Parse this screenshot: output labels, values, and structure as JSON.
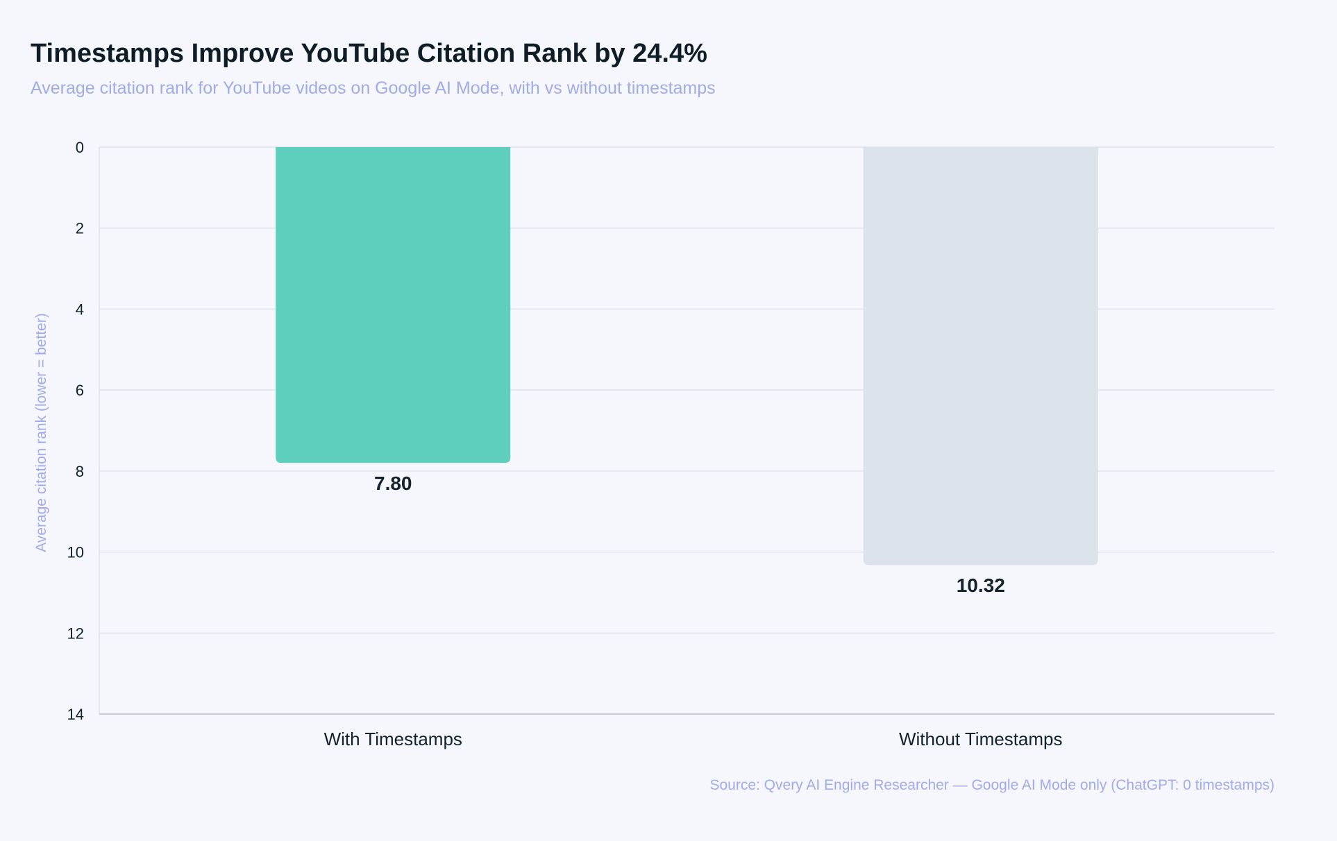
{
  "header": {
    "title": "Timestamps Improve YouTube Citation Rank by 24.4%",
    "subtitle": "Average citation rank for YouTube videos on Google AI Mode, with vs without timestamps"
  },
  "footer": {
    "source": "Source: Qvery AI Engine Researcher — Google AI Mode only (ChatGPT: 0 timestamps)"
  },
  "colors": {
    "with_timestamps": "#5ecfbc",
    "without_timestamps": "#dbe2ea",
    "grid": "#dde3ec",
    "axis": "#b9c1cc",
    "tick_text": "#14222b",
    "axis_label": "#a3aae8"
  },
  "chart_data": {
    "type": "bar",
    "title": "Timestamps Improve YouTube Citation Rank by 24.4%",
    "subtitle": "Average citation rank for YouTube videos on Google AI Mode, with vs without timestamps",
    "categories": [
      "With Timestamps",
      "Without Timestamps"
    ],
    "values": [
      7.8,
      10.32
    ],
    "value_labels": [
      "7.80",
      "10.32"
    ],
    "xlabel": "",
    "ylabel": "Average citation rank (lower = better)",
    "ylim": [
      0,
      14
    ],
    "y_inverted": true,
    "y_ticks": [
      0,
      2,
      4,
      6,
      8,
      10,
      12,
      14
    ],
    "grid": true,
    "legend": "none"
  }
}
